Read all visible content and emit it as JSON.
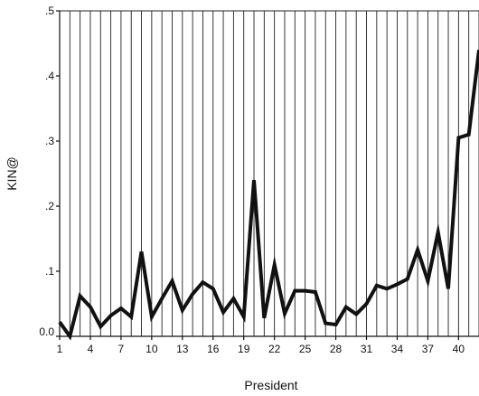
{
  "chart_data": {
    "type": "line",
    "title": "",
    "xlabel": "President",
    "ylabel": "KIN@",
    "xlim": [
      1,
      42
    ],
    "ylim": [
      0,
      0.5
    ],
    "grid": "vertical lines at every president",
    "x_tick_values": [
      1,
      4,
      7,
      10,
      13,
      16,
      19,
      22,
      25,
      28,
      31,
      34,
      37,
      40
    ],
    "x_tick_labels": [
      "1",
      "4",
      "7",
      "10",
      "13",
      "16",
      "19",
      "22",
      "25",
      "28",
      "31",
      "34",
      "37",
      "40"
    ],
    "y_tick_values": [
      0,
      0.1,
      0.2,
      0.3,
      0.4,
      0.5
    ],
    "y_tick_labels": [
      "0.0",
      ".1",
      ".2",
      ".3",
      ".4",
      ".5"
    ],
    "series": [
      {
        "color": "#111111",
        "x": [
          1,
          2,
          3,
          4,
          5,
          6,
          7,
          8,
          9,
          10,
          11,
          12,
          13,
          14,
          15,
          16,
          17,
          18,
          19,
          20,
          21,
          22,
          23,
          24,
          25,
          26,
          27,
          28,
          29,
          30,
          31,
          32,
          33,
          34,
          35,
          36,
          37,
          38,
          39,
          40,
          41,
          42
        ],
        "y": [
          0.022,
          0.0,
          0.062,
          0.045,
          0.015,
          0.032,
          0.043,
          0.03,
          0.13,
          0.03,
          0.058,
          0.085,
          0.04,
          0.065,
          0.083,
          0.073,
          0.037,
          0.058,
          0.03,
          0.24,
          0.028,
          0.11,
          0.035,
          0.07,
          0.07,
          0.068,
          0.02,
          0.018,
          0.045,
          0.034,
          0.05,
          0.078,
          0.073,
          0.08,
          0.088,
          0.133,
          0.085,
          0.16,
          0.073,
          0.305,
          0.31,
          0.44
        ]
      }
    ]
  }
}
